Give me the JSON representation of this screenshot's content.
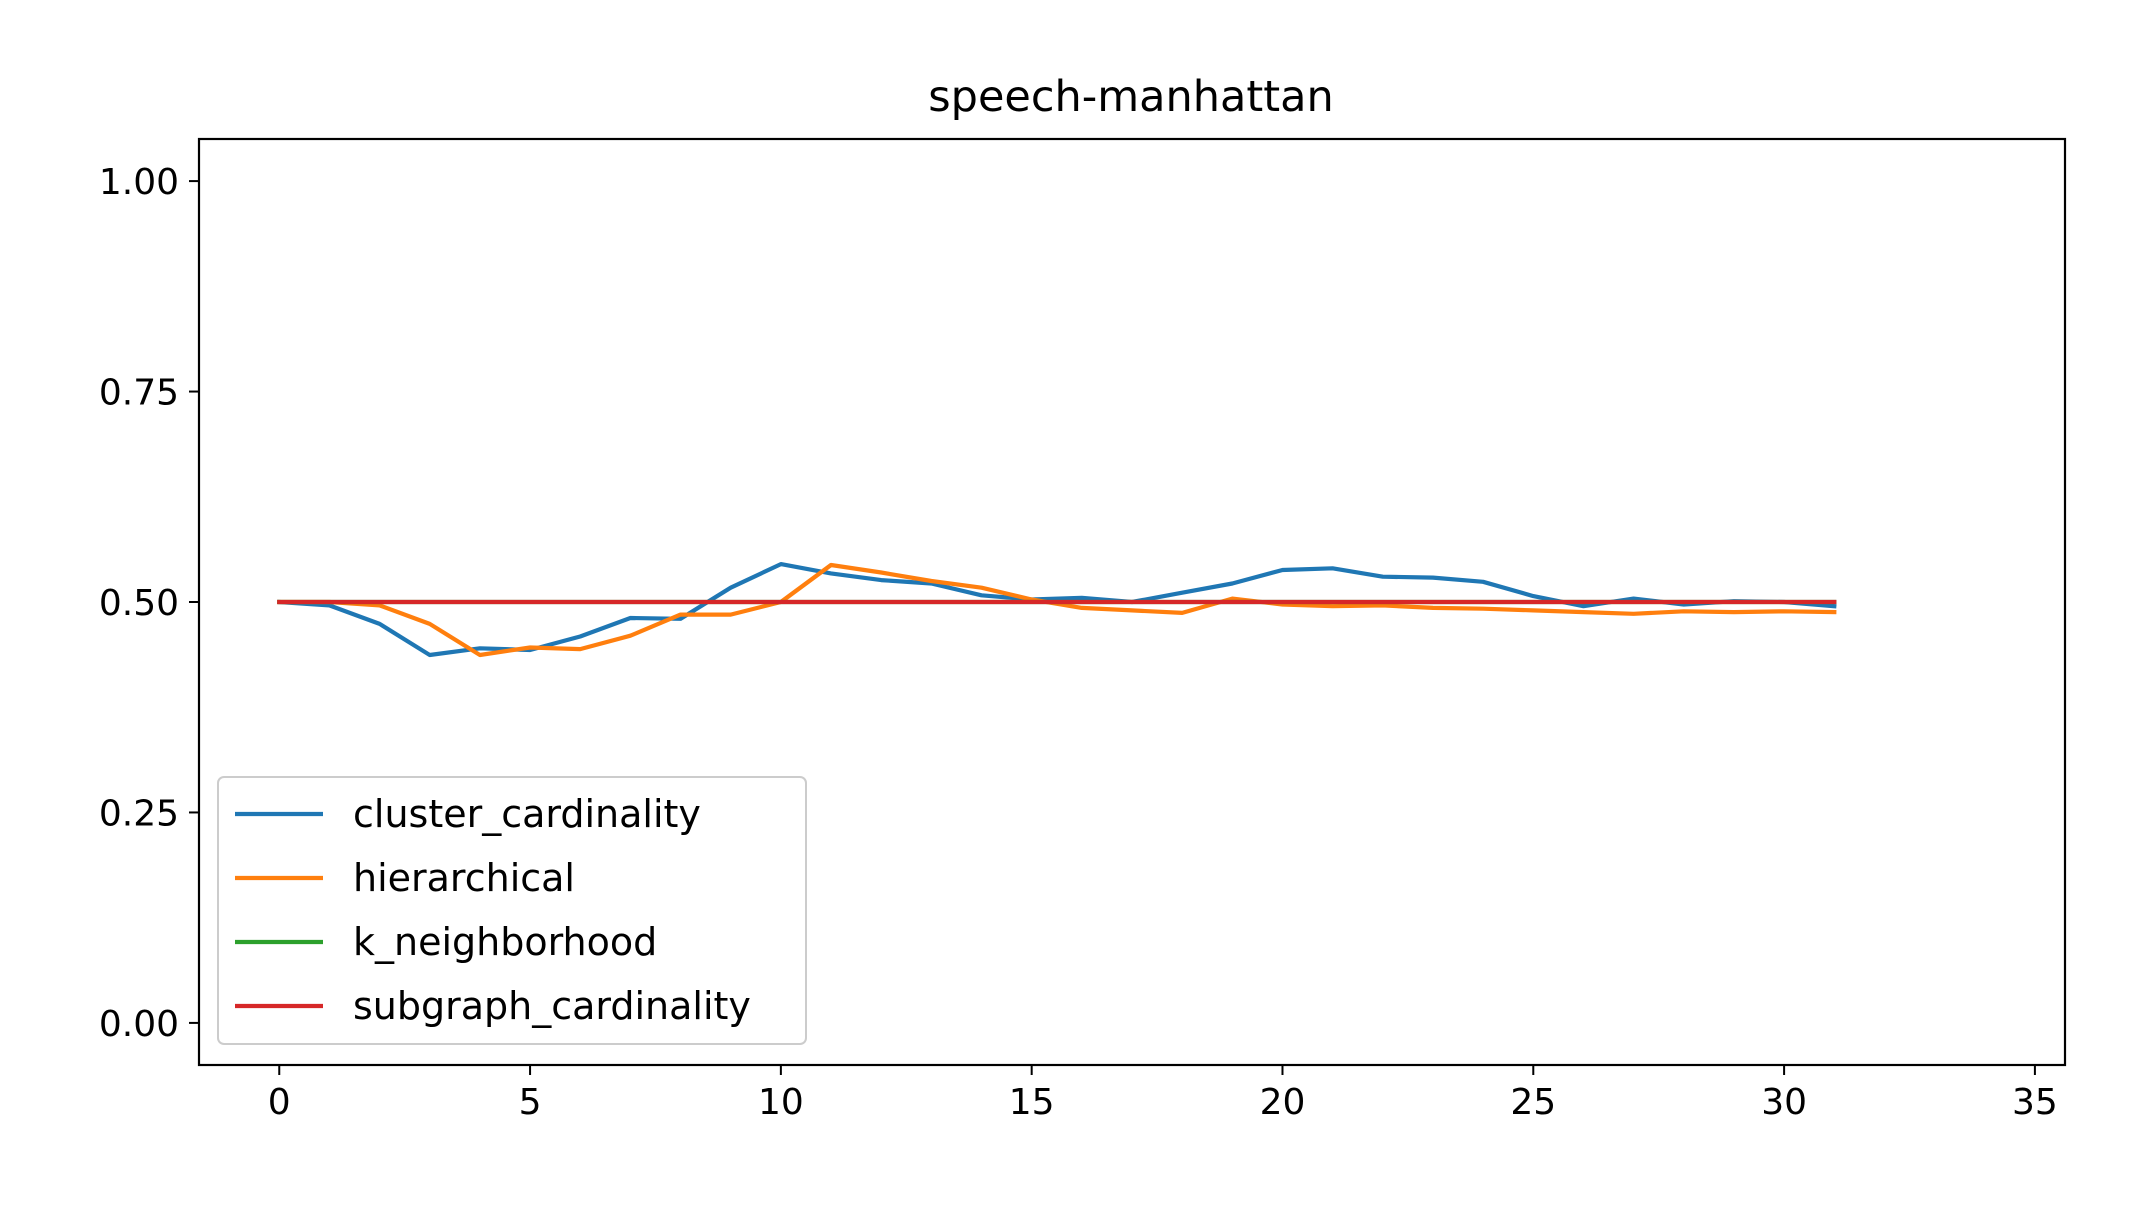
{
  "chart_data": {
    "type": "line",
    "title": "speech-manhattan",
    "xlabel": "",
    "ylabel": "",
    "xlim": [
      -1.6,
      35.6
    ],
    "ylim": [
      -0.05,
      1.05
    ],
    "xticks": [
      0,
      5,
      10,
      15,
      20,
      25,
      30,
      35
    ],
    "xtick_labels": [
      "0",
      "5",
      "10",
      "15",
      "20",
      "25",
      "30",
      "35"
    ],
    "yticks": [
      0.0,
      0.25,
      0.5,
      0.75,
      1.0
    ],
    "ytick_labels": [
      "0.00",
      "0.25",
      "0.50",
      "0.75",
      "1.00"
    ],
    "grid": false,
    "legend_position": "lower-left",
    "x": [
      0,
      1,
      2,
      3,
      4,
      5,
      6,
      7,
      8,
      9,
      10,
      11,
      12,
      13,
      14,
      15,
      16,
      17,
      18,
      19,
      20,
      21,
      22,
      23,
      24,
      25,
      26,
      27,
      28,
      29,
      30,
      31
    ],
    "series": [
      {
        "name": "cluster_cardinality",
        "color": "#1f77b4",
        "values": [
          0.5,
          0.496,
          0.474,
          0.437,
          0.445,
          0.443,
          0.459,
          0.481,
          0.48,
          0.517,
          0.545,
          0.534,
          0.526,
          0.522,
          0.508,
          0.503,
          0.505,
          0.5,
          0.511,
          0.522,
          0.538,
          0.54,
          0.53,
          0.529,
          0.524,
          0.507,
          0.495,
          0.504,
          0.497,
          0.501,
          0.5,
          0.495
        ]
      },
      {
        "name": "hierarchical",
        "color": "#ff7f0e",
        "values": [
          0.5,
          0.5,
          0.496,
          0.474,
          0.437,
          0.446,
          0.444,
          0.46,
          0.485,
          0.485,
          0.5,
          0.544,
          0.535,
          0.525,
          0.517,
          0.503,
          0.493,
          0.49,
          0.487,
          0.504,
          0.497,
          0.495,
          0.496,
          0.493,
          0.492,
          0.49,
          0.488,
          0.486,
          0.489,
          0.488,
          0.489,
          0.488
        ]
      },
      {
        "name": "k_neighborhood",
        "color": "#2ca02c",
        "values": [
          0.5,
          0.5,
          0.5,
          0.5,
          0.5,
          0.5,
          0.5,
          0.5,
          0.5,
          0.5,
          0.5,
          0.5,
          0.5,
          0.5,
          0.5,
          0.5,
          0.5,
          0.5,
          0.5,
          0.5,
          0.5,
          0.5,
          0.5,
          0.5,
          0.5,
          0.5,
          0.5,
          0.5,
          0.5,
          0.5,
          0.5,
          0.5
        ]
      },
      {
        "name": "subgraph_cardinality",
        "color": "#d62728",
        "values": [
          0.5,
          0.5,
          0.5,
          0.5,
          0.5,
          0.5,
          0.5,
          0.5,
          0.5,
          0.5,
          0.5,
          0.5,
          0.5,
          0.5,
          0.5,
          0.5,
          0.5,
          0.5,
          0.5,
          0.5,
          0.5,
          0.5,
          0.5,
          0.5,
          0.5,
          0.5,
          0.5,
          0.5,
          0.5,
          0.5,
          0.5,
          0.5
        ]
      }
    ]
  }
}
